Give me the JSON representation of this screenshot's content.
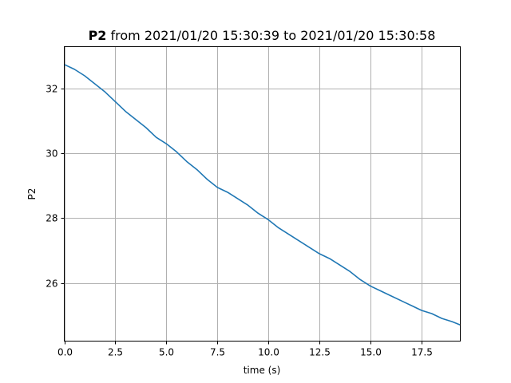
{
  "chart_data": {
    "type": "line",
    "title_bold": "P2",
    "title_rest": " from 2021/01/20 15:30:39 to 2021/01/20 15:30:58",
    "xlabel": "time (s)",
    "ylabel": "P2",
    "xlim": [
      0,
      19.4
    ],
    "ylim": [
      24.2,
      33.3
    ],
    "xticks": [
      0.0,
      2.5,
      5.0,
      7.5,
      10.0,
      12.5,
      15.0,
      17.5
    ],
    "xtick_labels": [
      "0.0",
      "2.5",
      "5.0",
      "7.5",
      "10.0",
      "12.5",
      "15.0",
      "17.5"
    ],
    "yticks": [
      26,
      28,
      30,
      32
    ],
    "ytick_labels": [
      "26",
      "28",
      "30",
      "32"
    ],
    "grid": true,
    "series": [
      {
        "color": "#1f77b4",
        "x": [
          0.0,
          0.5,
          1.0,
          1.5,
          2.0,
          2.5,
          3.0,
          3.5,
          4.0,
          4.5,
          5.0,
          5.5,
          6.0,
          6.5,
          7.0,
          7.5,
          8.0,
          8.5,
          9.0,
          9.5,
          10.0,
          10.5,
          11.0,
          11.5,
          12.0,
          12.5,
          13.0,
          13.5,
          14.0,
          14.5,
          15.0,
          15.5,
          16.0,
          16.5,
          17.0,
          17.5,
          18.0,
          18.5,
          19.0,
          19.4
        ],
        "y": [
          32.75,
          32.6,
          32.4,
          32.15,
          31.9,
          31.6,
          31.3,
          31.05,
          30.8,
          30.5,
          30.3,
          30.05,
          29.75,
          29.5,
          29.2,
          28.95,
          28.8,
          28.6,
          28.4,
          28.15,
          27.95,
          27.7,
          27.5,
          27.3,
          27.1,
          26.9,
          26.75,
          26.55,
          26.35,
          26.1,
          25.9,
          25.75,
          25.6,
          25.45,
          25.3,
          25.15,
          25.05,
          24.9,
          24.8,
          24.7
        ]
      }
    ]
  }
}
